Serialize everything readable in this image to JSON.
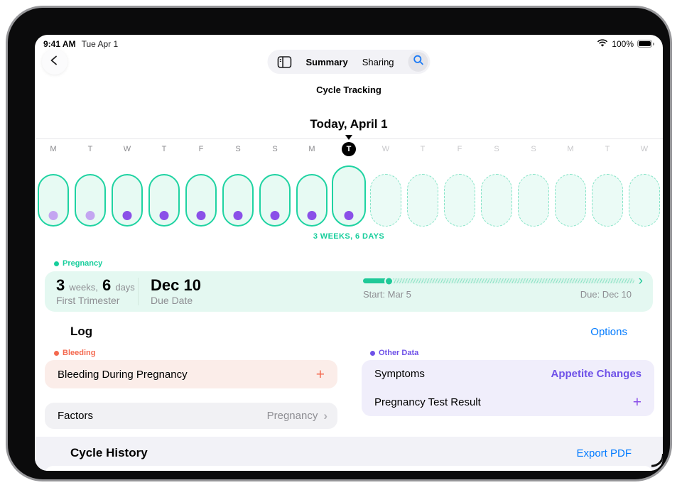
{
  "colors": {
    "teal": "#1FC998",
    "teal_text": "#17CE9C",
    "mint_oval_fill": "#E7FAF3",
    "mint_card": "#E4F8F1",
    "purple_dot": "#8A50E8",
    "purple_dot_light": "#C4A5F1",
    "purple_text": "#6F52E8",
    "coral": "#F4694F",
    "pink_card": "#FBEDE9",
    "lavender_card": "#F0EEFB",
    "gray_card": "#F1F1F4",
    "section_bg": "#F2F2F7",
    "blue_link": "#007AFF"
  },
  "status_bar": {
    "time": "9:41 AM",
    "date": "Tue Apr 1",
    "battery_percent": "100%"
  },
  "nav": {
    "tab_summary": "Summary",
    "tab_sharing": "Sharing"
  },
  "titles": {
    "app": "Cycle Tracking",
    "date": "Today, April 1"
  },
  "calendar": {
    "duration_label": "3 WEEKS, 6 DAYS",
    "days": [
      {
        "letter": "M",
        "state": "past",
        "dot": "light"
      },
      {
        "letter": "T",
        "state": "past",
        "dot": "light"
      },
      {
        "letter": "W",
        "state": "past",
        "dot": "solid"
      },
      {
        "letter": "T",
        "state": "past",
        "dot": "solid"
      },
      {
        "letter": "F",
        "state": "past",
        "dot": "solid"
      },
      {
        "letter": "S",
        "state": "past",
        "dot": "solid"
      },
      {
        "letter": "S",
        "state": "past",
        "dot": "solid"
      },
      {
        "letter": "M",
        "state": "past",
        "dot": "solid"
      },
      {
        "letter": "T",
        "state": "today",
        "dot": "solid"
      },
      {
        "letter": "W",
        "state": "future",
        "dot": "none"
      },
      {
        "letter": "T",
        "state": "future",
        "dot": "none"
      },
      {
        "letter": "F",
        "state": "future",
        "dot": "none"
      },
      {
        "letter": "S",
        "state": "future",
        "dot": "none"
      },
      {
        "letter": "S",
        "state": "future",
        "dot": "none"
      },
      {
        "letter": "M",
        "state": "future",
        "dot": "none"
      },
      {
        "letter": "T",
        "state": "future",
        "dot": "none"
      },
      {
        "letter": "W",
        "state": "future",
        "dot": "none"
      }
    ]
  },
  "pregnancy": {
    "section_label": "Pregnancy",
    "weeks_value": "3",
    "weeks_unit": "weeks,",
    "days_value": "6",
    "days_unit": "days",
    "stage": "First Trimester",
    "due_value": "Dec 10",
    "due_caption": "Due Date",
    "progress_percent": 10,
    "start_text": "Start: Mar 5",
    "due_text": "Due: Dec 10",
    "chevron": "›"
  },
  "log": {
    "title": "Log",
    "options": "Options",
    "bleeding": {
      "section_label": "Bleeding",
      "item": "Bleeding During Pregnancy",
      "add_icon": "+"
    },
    "factors": {
      "label": "Factors",
      "value": "Pregnancy",
      "chevron": "›"
    },
    "other_data": {
      "section_label": "Other Data",
      "rows": [
        {
          "label": "Symptoms",
          "value": "Appetite Changes"
        },
        {
          "label": "Pregnancy Test Result",
          "value": "+"
        }
      ]
    }
  },
  "history": {
    "title": "Cycle History",
    "export": "Export PDF"
  }
}
